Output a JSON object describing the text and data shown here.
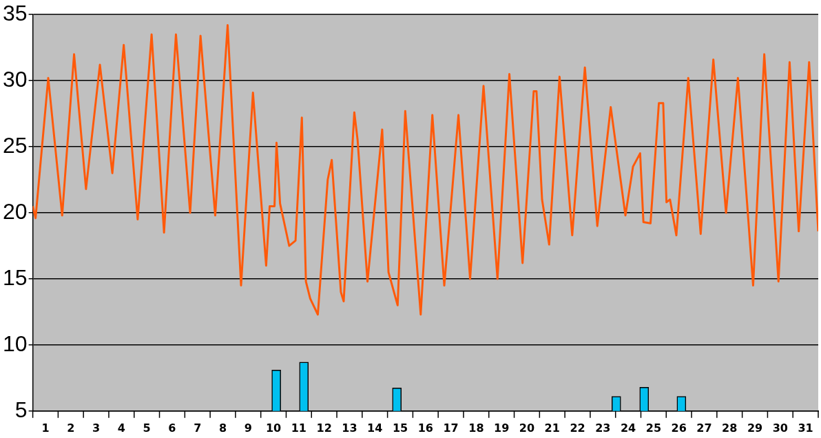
{
  "chart_data": {
    "type": "line",
    "ylim": [
      5,
      35
    ],
    "yticks": [
      5,
      10,
      15,
      20,
      25,
      30,
      35
    ],
    "xlim": [
      0,
      31
    ],
    "xticks": [
      {
        "value": 0.5,
        "label": "1"
      },
      {
        "value": 1.5,
        "label": "2"
      },
      {
        "value": 2.5,
        "label": "3"
      },
      {
        "value": 3.5,
        "label": "4"
      },
      {
        "value": 4.5,
        "label": "5"
      },
      {
        "value": 5.5,
        "label": "6"
      },
      {
        "value": 6.5,
        "label": "7"
      },
      {
        "value": 7.5,
        "label": "8"
      },
      {
        "value": 8.5,
        "label": "9"
      },
      {
        "value": 9.5,
        "label": "10"
      },
      {
        "value": 10.5,
        "label": "11"
      },
      {
        "value": 11.5,
        "label": "12"
      },
      {
        "value": 12.5,
        "label": "13"
      },
      {
        "value": 13.5,
        "label": "14"
      },
      {
        "value": 14.5,
        "label": "15"
      },
      {
        "value": 15.5,
        "label": "16"
      },
      {
        "value": 16.5,
        "label": "17"
      },
      {
        "value": 17.5,
        "label": "18"
      },
      {
        "value": 18.5,
        "label": "19"
      },
      {
        "value": 19.5,
        "label": "20"
      },
      {
        "value": 20.5,
        "label": "21"
      },
      {
        "value": 21.5,
        "label": "22"
      },
      {
        "value": 22.5,
        "label": "23"
      },
      {
        "value": 23.5,
        "label": "24"
      },
      {
        "value": 24.5,
        "label": "25"
      },
      {
        "value": 25.5,
        "label": "26"
      },
      {
        "value": 26.5,
        "label": "27"
      },
      {
        "value": 27.5,
        "label": "28"
      },
      {
        "value": 28.5,
        "label": "29"
      },
      {
        "value": 29.5,
        "label": "30"
      },
      {
        "value": 30.5,
        "label": "31"
      }
    ],
    "grid": "y",
    "legend": false,
    "marker": "none",
    "line_style": "solid",
    "series": [
      {
        "color": "#ff5a0a",
        "x": [
          0,
          0.11,
          0.61,
          1.16,
          1.63,
          2.1,
          2.65,
          3.14,
          3.59,
          4.14,
          4.69,
          5.18,
          5.65,
          6.21,
          6.62,
          7.2,
          7.69,
          8.22,
          8.69,
          9.21,
          9.35,
          9.54,
          9.62,
          9.76,
          10.12,
          10.37,
          10.62,
          10.78,
          10.95,
          11.25,
          11.64,
          11.8,
          12.16,
          12.27,
          12.69,
          12.82,
          13.21,
          13.79,
          14.04,
          14.4,
          14.7,
          15.31,
          15.77,
          16.24,
          16.8,
          17.26,
          17.79,
          18.34,
          18.81,
          19.33,
          19.77,
          19.88,
          20.1,
          20.38,
          20.79,
          21.29,
          21.79,
          22.28,
          22.81,
          23.39,
          23.69,
          23.97,
          24.1,
          24.38,
          24.71,
          24.88,
          25.01,
          25.15,
          25.4,
          25.87,
          26.36,
          26.86,
          27.36,
          27.83,
          28.43,
          28.87,
          29.43,
          29.87,
          30.23,
          30.64,
          31
        ],
        "values": [
          20.5,
          19.6,
          30.2,
          19.8,
          32,
          21.8,
          31.2,
          23,
          32.7,
          19.5,
          33.5,
          18.5,
          33.5,
          20,
          33.4,
          19.8,
          34.2,
          14.5,
          29.1,
          16,
          20.5,
          20.5,
          25.3,
          20.7,
          17.5,
          17.9,
          27.2,
          14.8,
          13.5,
          12.3,
          22.5,
          24,
          14,
          13.3,
          27.6,
          25.5,
          14.8,
          26.3,
          15.5,
          13,
          27.7,
          12.3,
          27.4,
          14.5,
          27.4,
          15,
          29.6,
          15,
          30.5,
          16.2,
          29.2,
          29.2,
          21,
          17.6,
          30.3,
          18.3,
          31,
          19,
          28,
          19.8,
          23.5,
          24.5,
          19.3,
          19.2,
          28.3,
          28.3,
          20.8,
          21,
          18.3,
          30.2,
          18.4,
          31.6,
          20,
          30.2,
          14.5,
          32,
          14.8,
          31.4,
          18.6,
          31.4,
          18.6
        ]
      },
      {
        "type": "bar",
        "color": "#00c0f0",
        "x": [
          9.61,
          10.7,
          14.37,
          23.03,
          24.13,
          25.6
        ],
        "values": [
          8.1,
          8.7,
          6.75,
          6.1,
          6.8,
          6.1
        ]
      }
    ]
  }
}
